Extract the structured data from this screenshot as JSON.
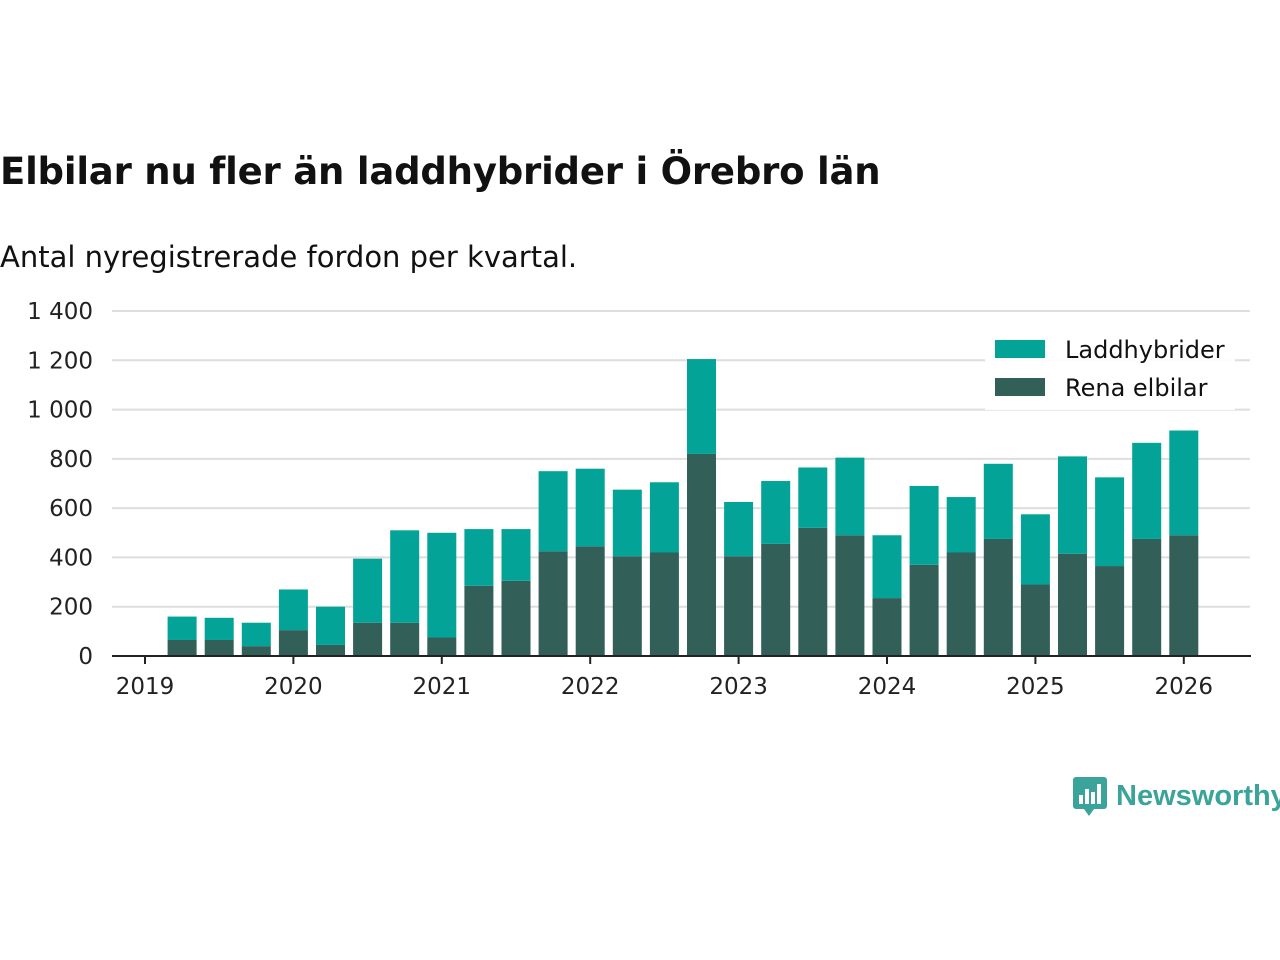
{
  "chart_data": {
    "type": "bar",
    "stacked": true,
    "title": "Elbilar nu fler än laddhybrider i Örebro län",
    "subtitle": "Antal nyregistrerade fordon per kvartal.",
    "xlabel": "",
    "ylabel": "",
    "ylim": [
      0,
      1400
    ],
    "y_ticks": [
      0,
      200,
      400,
      600,
      800,
      1000,
      1200,
      1400
    ],
    "y_tick_labels": [
      "0",
      "200",
      "400",
      "600",
      "800",
      "1 000",
      "1 200",
      "1 400"
    ],
    "x_ticks": [
      "2019",
      "2020",
      "2021",
      "2022",
      "2023",
      "2024",
      "2025",
      "2026"
    ],
    "categories": [
      "2019 Q2",
      "2019 Q3",
      "2019 Q4",
      "2020 Q1",
      "2020 Q2",
      "2020 Q3",
      "2020 Q4",
      "2021 Q1",
      "2021 Q2",
      "2021 Q3",
      "2021 Q4",
      "2022 Q1",
      "2022 Q2",
      "2022 Q3",
      "2022 Q4",
      "2023 Q1",
      "2023 Q2",
      "2023 Q3",
      "2023 Q4",
      "2024 Q1",
      "2024 Q2",
      "2024 Q3",
      "2024 Q4",
      "2025 Q1",
      "2025 Q2",
      "2025 Q3",
      "2025 Q4",
      "2026 Q1"
    ],
    "legend_position": "top-right",
    "series": [
      {
        "name": "Rena elbilar",
        "color": "#325f58",
        "values": [
          65,
          65,
          40,
          105,
          45,
          135,
          135,
          75,
          285,
          305,
          425,
          445,
          405,
          420,
          820,
          405,
          455,
          520,
          490,
          235,
          370,
          420,
          475,
          290,
          415,
          365,
          475,
          490
        ]
      },
      {
        "name": "Laddhybrider",
        "color": "#03a398",
        "values": [
          95,
          90,
          95,
          165,
          155,
          260,
          375,
          425,
          230,
          210,
          325,
          315,
          270,
          285,
          385,
          220,
          255,
          245,
          315,
          255,
          320,
          225,
          305,
          285,
          395,
          360,
          390,
          425
        ]
      }
    ]
  },
  "brand": {
    "name": "Newsworthy",
    "color": "#3aa39a",
    "icon": "bar-chart-speech-icon"
  }
}
